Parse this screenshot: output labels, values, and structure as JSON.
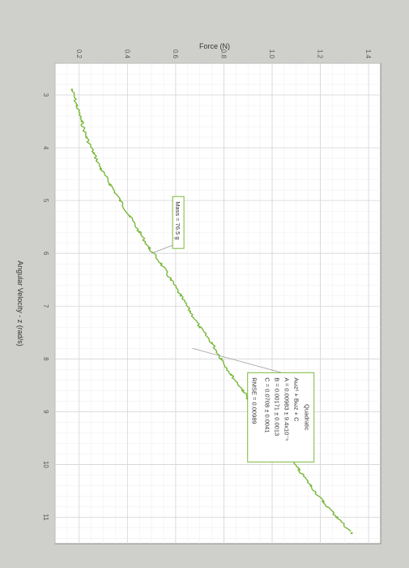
{
  "chart_data": {
    "type": "scatter",
    "xlabel": "Angular Velocity - z (rad/s)",
    "ylabel": "Force (N)",
    "xlim": [
      2.4,
      11.5
    ],
    "ylim": [
      0.1,
      1.45
    ],
    "x_ticks": [
      "3",
      "4",
      "5",
      "6",
      "7",
      "8",
      "9",
      "10",
      "11"
    ],
    "y_ticks": [
      "0.2",
      "0.4",
      "0.6",
      "0.8",
      "1.0",
      "1.2",
      "1.4"
    ],
    "grid": true,
    "series": [
      {
        "color": "#7ab83a",
        "x": [
          2.9,
          3.2,
          3.5,
          3.8,
          4.1,
          4.4,
          4.7,
          5.0,
          5.3,
          5.6,
          5.9,
          6.2,
          6.5,
          6.8,
          7.1,
          7.4,
          7.7,
          8.0,
          8.3,
          8.6,
          8.9,
          9.2,
          9.5,
          9.8,
          10.1,
          10.4,
          10.7,
          11.0,
          11.3
        ],
        "y": [
          0.17,
          0.19,
          0.21,
          0.23,
          0.26,
          0.29,
          0.33,
          0.37,
          0.41,
          0.45,
          0.49,
          0.54,
          0.58,
          0.62,
          0.66,
          0.7,
          0.75,
          0.79,
          0.83,
          0.88,
          0.92,
          0.97,
          1.01,
          1.06,
          1.11,
          1.16,
          1.21,
          1.27,
          1.33
        ]
      }
    ],
    "annotations": [
      {
        "label": "Mass = 76.5 g",
        "at": [
          6.0,
          0.5
        ]
      },
      {
        "title": "Quadratic",
        "lines": [
          "Aωz² + Bωz + C",
          "A = 0.00983 ± 9.4x10⁻⁵",
          "B = 0.00171 ± 0.0013",
          "C = 0.0708 ± 0.0041",
          "RMSE = 0.00989"
        ],
        "at": [
          7.8,
          0.67
        ]
      }
    ]
  }
}
